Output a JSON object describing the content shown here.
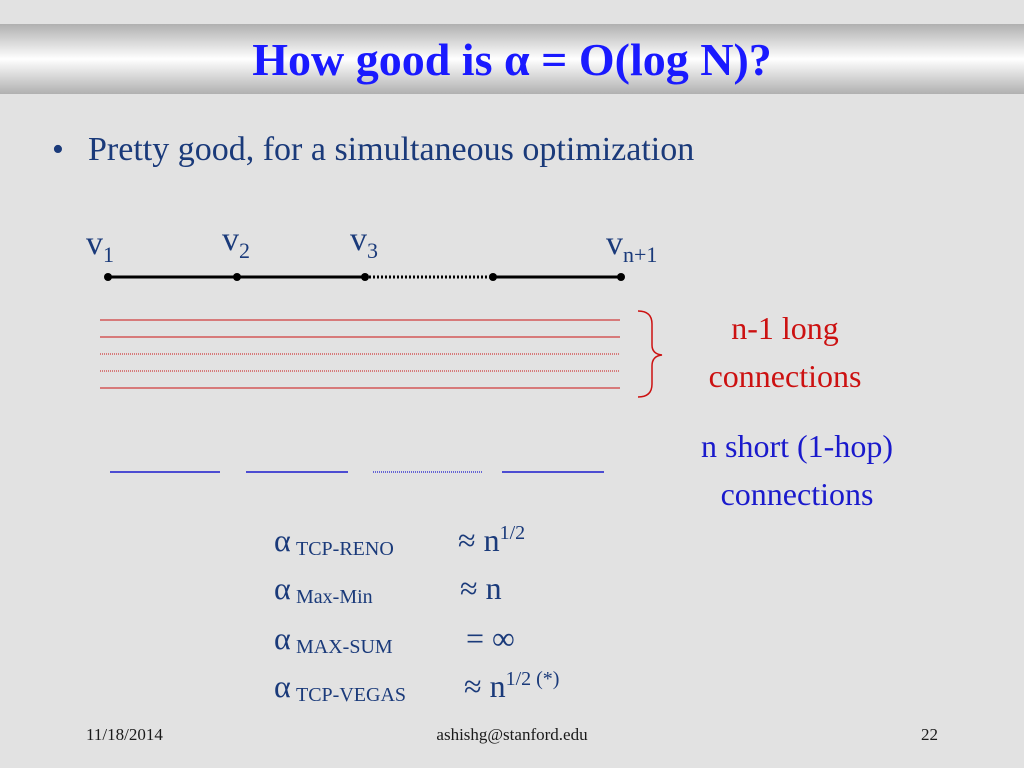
{
  "slide": {
    "title": "How good is α = O(log N)?",
    "bullet_marker": "•",
    "bullet": "Pretty good, for a simultaneous optimization"
  },
  "nodes": [
    {
      "base": "v",
      "sub": "1"
    },
    {
      "base": "v",
      "sub": "2"
    },
    {
      "base": "v",
      "sub": "3"
    },
    {
      "base": "v",
      "sub": "n+1"
    }
  ],
  "labels": {
    "long_line1": "n-1 long",
    "long_line2": "connections",
    "short_line1": "n short (1-hop)",
    "short_line2": "connections"
  },
  "alphas": [
    {
      "symbol": "α",
      "sub": "TCP-RENO",
      "rel": "≈ n",
      "sup": "1/2"
    },
    {
      "symbol": "α",
      "sub": "Max-Min",
      "rel": "≈ n",
      "sup": ""
    },
    {
      "symbol": "α",
      "sub": "MAX-SUM",
      "rel": "= ∞",
      "sup": ""
    },
    {
      "symbol": "α",
      "sub": "TCP-VEGAS",
      "rel": "≈ n",
      "sup": "1/2 (*)"
    }
  ],
  "footer": {
    "date": "11/18/2014",
    "email": "ashishg@stanford.edu",
    "page": "22"
  },
  "colors": {
    "title": "#1a1aff",
    "body_text": "#1a3a7a",
    "long_connections": "#cc1111",
    "short_connections": "#1a1acc"
  }
}
